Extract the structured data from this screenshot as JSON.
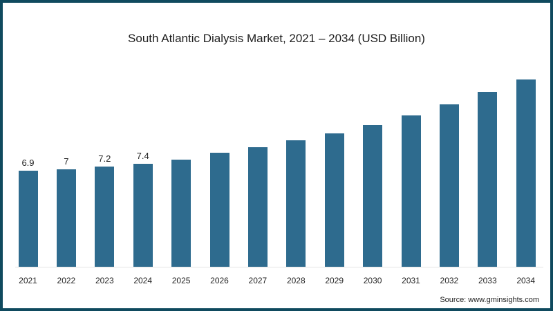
{
  "chart_data": {
    "type": "bar",
    "title": "South Atlantic Dialysis Market, 2021 – 2034 (USD Billion)",
    "xlabel": "",
    "ylabel": "",
    "categories": [
      "2021",
      "2022",
      "2023",
      "2024",
      "2025",
      "2026",
      "2027",
      "2028",
      "2029",
      "2030",
      "2031",
      "2032",
      "2033",
      "2034"
    ],
    "values": [
      6.9,
      7.0,
      7.2,
      7.4,
      7.7,
      8.2,
      8.6,
      9.1,
      9.6,
      10.2,
      10.9,
      11.7,
      12.6,
      13.5
    ],
    "data_labels": [
      "6.9",
      "7",
      "7.2",
      "7.4",
      "",
      "",
      "",
      "",
      "",
      "",
      "",
      "",
      "",
      ""
    ],
    "ylim": [
      0,
      16
    ],
    "grid": false,
    "legend": "none",
    "bar_color": "#2e6b8e"
  },
  "source": "Source: www.gminsights.com"
}
